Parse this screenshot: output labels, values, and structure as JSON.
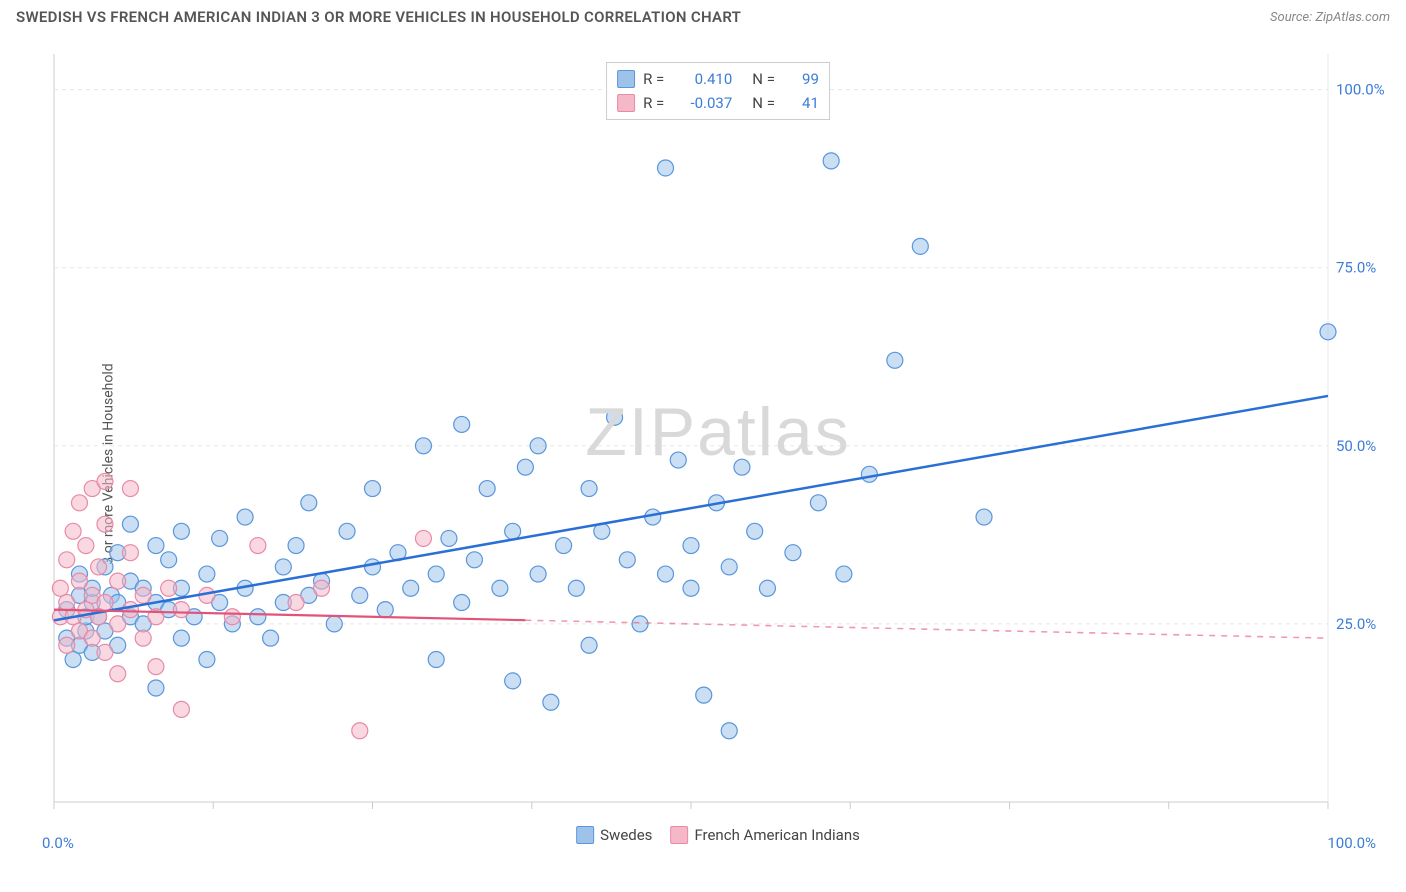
{
  "title": "SWEDISH VS FRENCH AMERICAN INDIAN 3 OR MORE VEHICLES IN HOUSEHOLD CORRELATION CHART",
  "source_label": "Source: ",
  "source_name": "ZipAtlas.com",
  "ylabel": "3 or more Vehicles in Household",
  "watermark": "ZIPatlas",
  "chart": {
    "type": "scatter",
    "background_color": "#ffffff",
    "grid_color": "#e8e8e8",
    "axis_color": "#cccccc",
    "xlim": [
      0,
      100
    ],
    "ylim": [
      0,
      105
    ],
    "x_ticks": [
      0,
      12.5,
      25,
      37.5,
      50,
      62.5,
      75,
      87.5,
      100
    ],
    "x_tick_labels": {
      "0": "0.0%",
      "100": "100.0%"
    },
    "y_gridlines": [
      25,
      50,
      75,
      100
    ],
    "y_tick_labels": {
      "25": "25.0%",
      "50": "50.0%",
      "75": "75.0%",
      "100": "100.0%"
    },
    "axis_label_color": "#3b7dd8",
    "axis_label_fontsize": 15,
    "series": [
      {
        "name": "Swedes",
        "key": "swedes",
        "fill": "#9fc2eb",
        "fill_opacity": 0.55,
        "stroke": "#5a96db",
        "marker_radius": 8,
        "trend": {
          "color": "#2a6fd6",
          "width": 2.5,
          "x0": 0,
          "y0": 25.5,
          "x1": 100,
          "y1": 57,
          "dash_from_x": 100
        },
        "R": "0.410",
        "N": "99",
        "points": [
          [
            1,
            23
          ],
          [
            1,
            27
          ],
          [
            1.5,
            20
          ],
          [
            2,
            22
          ],
          [
            2,
            29
          ],
          [
            2,
            32
          ],
          [
            2.5,
            24
          ],
          [
            2.5,
            26
          ],
          [
            3,
            21
          ],
          [
            3,
            28
          ],
          [
            3,
            30
          ],
          [
            3.5,
            26
          ],
          [
            4,
            24
          ],
          [
            4,
            33
          ],
          [
            4.5,
            29
          ],
          [
            5,
            22
          ],
          [
            5,
            28
          ],
          [
            5,
            35
          ],
          [
            6,
            26
          ],
          [
            6,
            31
          ],
          [
            6,
            39
          ],
          [
            7,
            25
          ],
          [
            7,
            30
          ],
          [
            8,
            28
          ],
          [
            8,
            36
          ],
          [
            8,
            16
          ],
          [
            9,
            27
          ],
          [
            9,
            34
          ],
          [
            10,
            23
          ],
          [
            10,
            30
          ],
          [
            10,
            38
          ],
          [
            11,
            26
          ],
          [
            12,
            32
          ],
          [
            12,
            20
          ],
          [
            13,
            28
          ],
          [
            13,
            37
          ],
          [
            14,
            25
          ],
          [
            15,
            30
          ],
          [
            15,
            40
          ],
          [
            16,
            26
          ],
          [
            17,
            23
          ],
          [
            18,
            33
          ],
          [
            18,
            28
          ],
          [
            19,
            36
          ],
          [
            20,
            29
          ],
          [
            20,
            42
          ],
          [
            21,
            31
          ],
          [
            22,
            25
          ],
          [
            23,
            38
          ],
          [
            24,
            29
          ],
          [
            25,
            33
          ],
          [
            25,
            44
          ],
          [
            26,
            27
          ],
          [
            27,
            35
          ],
          [
            28,
            30
          ],
          [
            29,
            50
          ],
          [
            30,
            32
          ],
          [
            30,
            20
          ],
          [
            31,
            37
          ],
          [
            32,
            28
          ],
          [
            32,
            53
          ],
          [
            33,
            34
          ],
          [
            34,
            44
          ],
          [
            35,
            30
          ],
          [
            36,
            38
          ],
          [
            36,
            17
          ],
          [
            37,
            47
          ],
          [
            38,
            32
          ],
          [
            38,
            50
          ],
          [
            39,
            14
          ],
          [
            40,
            36
          ],
          [
            41,
            30
          ],
          [
            42,
            44
          ],
          [
            42,
            22
          ],
          [
            43,
            38
          ],
          [
            44,
            54
          ],
          [
            45,
            34
          ],
          [
            46,
            25
          ],
          [
            47,
            40
          ],
          [
            48,
            32
          ],
          [
            48,
            89
          ],
          [
            49,
            48
          ],
          [
            50,
            36
          ],
          [
            50,
            30
          ],
          [
            51,
            15
          ],
          [
            52,
            42
          ],
          [
            53,
            33
          ],
          [
            53,
            10
          ],
          [
            54,
            47
          ],
          [
            55,
            38
          ],
          [
            56,
            30
          ],
          [
            58,
            35
          ],
          [
            60,
            42
          ],
          [
            61,
            90
          ],
          [
            62,
            32
          ],
          [
            64,
            46
          ],
          [
            66,
            62
          ],
          [
            68,
            78
          ],
          [
            73,
            40
          ],
          [
            100,
            66
          ]
        ]
      },
      {
        "name": "French American Indians",
        "key": "french",
        "fill": "#f4b8c8",
        "fill_opacity": 0.55,
        "stroke": "#e88aa6",
        "marker_radius": 8,
        "trend": {
          "color": "#e2537a",
          "width": 2.2,
          "x0": 0,
          "y0": 27,
          "x1": 100,
          "y1": 23,
          "dash_from_x": 37
        },
        "R": "-0.037",
        "N": "41",
        "points": [
          [
            0.5,
            26
          ],
          [
            0.5,
            30
          ],
          [
            1,
            22
          ],
          [
            1,
            28
          ],
          [
            1,
            34
          ],
          [
            1.5,
            26
          ],
          [
            1.5,
            38
          ],
          [
            2,
            24
          ],
          [
            2,
            31
          ],
          [
            2,
            42
          ],
          [
            2.5,
            27
          ],
          [
            2.5,
            36
          ],
          [
            3,
            23
          ],
          [
            3,
            29
          ],
          [
            3,
            44
          ],
          [
            3.5,
            26
          ],
          [
            3.5,
            33
          ],
          [
            4,
            21
          ],
          [
            4,
            28
          ],
          [
            4,
            39
          ],
          [
            4,
            45
          ],
          [
            5,
            25
          ],
          [
            5,
            31
          ],
          [
            5,
            18
          ],
          [
            6,
            27
          ],
          [
            6,
            35
          ],
          [
            6,
            44
          ],
          [
            7,
            23
          ],
          [
            7,
            29
          ],
          [
            8,
            26
          ],
          [
            8,
            19
          ],
          [
            9,
            30
          ],
          [
            10,
            27
          ],
          [
            10,
            13
          ],
          [
            12,
            29
          ],
          [
            14,
            26
          ],
          [
            16,
            36
          ],
          [
            19,
            28
          ],
          [
            21,
            30
          ],
          [
            24,
            10
          ],
          [
            29,
            37
          ]
        ]
      }
    ],
    "legend_bottom": [
      {
        "label": "Swedes",
        "fill": "#9fc2eb",
        "stroke": "#5a96db"
      },
      {
        "label": "French American Indians",
        "fill": "#f4b8c8",
        "stroke": "#e88aa6"
      }
    ],
    "stats_box": {
      "rows": [
        {
          "fill": "#9fc2eb",
          "stroke": "#5a96db",
          "r_label": "R =",
          "r_val": "0.410",
          "n_label": "N =",
          "n_val": "99"
        },
        {
          "fill": "#f4b8c8",
          "stroke": "#e88aa6",
          "r_label": "R =",
          "r_val": "-0.037",
          "n_label": "N =",
          "n_val": "41"
        }
      ]
    }
  }
}
